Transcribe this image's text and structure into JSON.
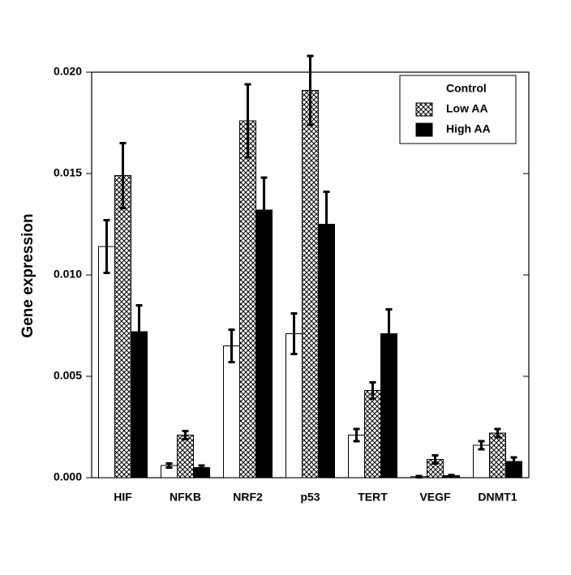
{
  "chart_data": {
    "type": "bar",
    "ylabel": "Gene expression",
    "categories": [
      "HIF",
      "NFKB",
      "NRF2",
      "p53",
      "TERT",
      "VEGF",
      "DNMT1"
    ],
    "series": [
      {
        "name": "Control",
        "color": "#ffffff",
        "values": [
          0.0114,
          0.0006,
          0.0065,
          0.0071,
          0.0021,
          5e-05,
          0.0016
        ],
        "errors": [
          0.0013,
          0.0001,
          0.0008,
          0.001,
          0.0003,
          3e-05,
          0.0002
        ]
      },
      {
        "name": "Low AA",
        "color": "#000000",
        "pattern": "crosshatch",
        "values": [
          0.0149,
          0.0021,
          0.0176,
          0.0191,
          0.0043,
          0.0009,
          0.0022
        ],
        "errors": [
          0.0016,
          0.0002,
          0.0018,
          0.0017,
          0.0004,
          0.0002,
          0.0002
        ]
      },
      {
        "name": "High AA",
        "color": "#000000",
        "values": [
          0.0072,
          0.0005,
          0.0132,
          0.0125,
          0.0071,
          0.0001,
          0.0008
        ],
        "errors": [
          0.0013,
          0.0001,
          0.0016,
          0.0016,
          0.0012,
          3e-05,
          0.0002
        ]
      }
    ],
    "ylim": [
      0,
      0.02
    ],
    "yticks": [
      {
        "value": 0,
        "label": "0.000"
      },
      {
        "value": 0.005,
        "label": "0.005"
      },
      {
        "value": 0.01,
        "label": "0.010"
      },
      {
        "value": 0.015,
        "label": "0.015"
      },
      {
        "value": 0.02,
        "label": "0.020"
      }
    ],
    "legend": "upper right"
  }
}
